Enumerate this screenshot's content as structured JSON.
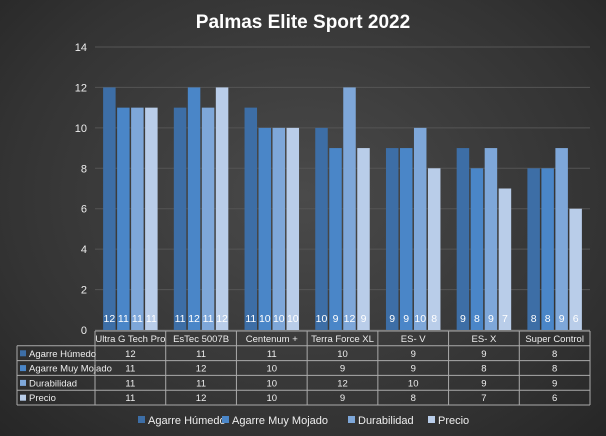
{
  "chart_data": {
    "type": "bar",
    "title": "Palmas Elite Sport 2022",
    "categories": [
      "Ultra G Tech Pro",
      "EsTec 5007B",
      "Centenum +",
      "Terra Force XL",
      "ES- V",
      "ES- X",
      "Super Control"
    ],
    "series": [
      {
        "name": "Agarre Húmedo",
        "values": [
          12,
          11,
          11,
          10,
          9,
          9,
          8
        ],
        "color": "#3d6ea6"
      },
      {
        "name": "Agarre Muy Mojado",
        "values": [
          11,
          12,
          10,
          9,
          9,
          8,
          8
        ],
        "color": "#4a86c8"
      },
      {
        "name": "Durabilidad",
        "values": [
          11,
          11,
          10,
          12,
          10,
          9,
          9
        ],
        "color": "#7ea7d9"
      },
      {
        "name": "Precio",
        "values": [
          11,
          12,
          10,
          9,
          8,
          7,
          6
        ],
        "color": "#b9cde9"
      }
    ],
    "ylim": [
      0,
      14
    ],
    "yticks": [
      0,
      2,
      4,
      6,
      8,
      10,
      12,
      14
    ],
    "grid": true,
    "data_table": true,
    "legend": "bottom"
  }
}
